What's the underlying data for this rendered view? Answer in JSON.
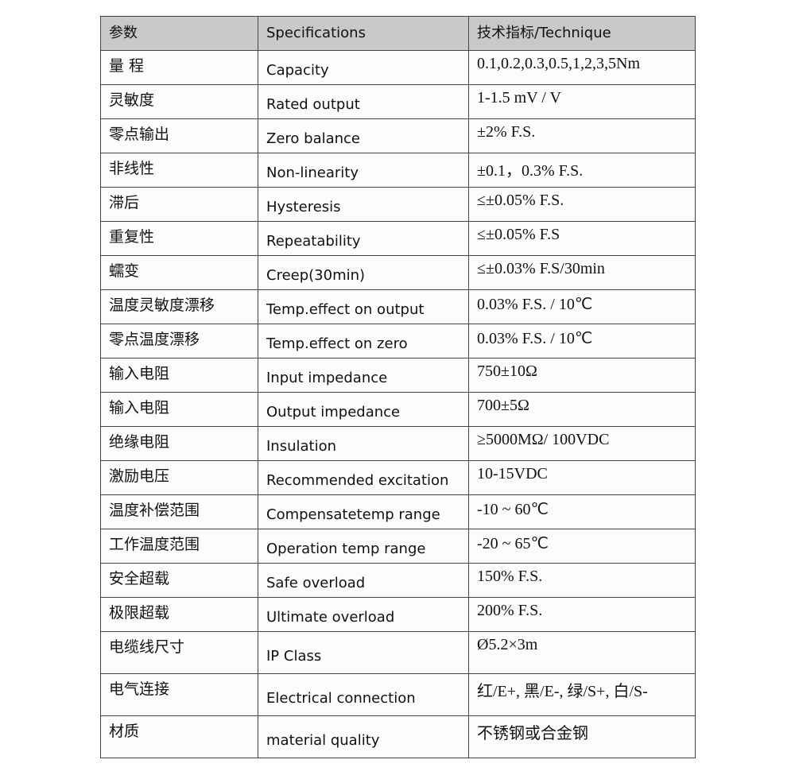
{
  "header": {
    "param": "参数",
    "spec": "Specifications",
    "tech": "技术指标/Technique"
  },
  "rows": [
    {
      "cn": "量 程",
      "en": "Capacity",
      "val": "0.1,0.2,0.3,0.5,1,2,3,5Nm"
    },
    {
      "cn": "灵敏度",
      "en": "Rated output",
      "val": "1-1.5 mV / V"
    },
    {
      "cn": "零点输出",
      "en": "Zero balance",
      "val": "±2% F.S."
    },
    {
      "cn": "非线性",
      "en": "Non-linearity",
      "val": "±0.1，0.3% F.S."
    },
    {
      "cn": "滞后",
      "en": "Hysteresis",
      "val": "≤±0.05% F.S."
    },
    {
      "cn": "重复性",
      "en": "Repeatability",
      "val": "≤±0.05% F.S"
    },
    {
      "cn": "蠕变",
      "en": "Creep(30min)",
      "val": "≤±0.03% F.S/30min"
    },
    {
      "cn": "温度灵敏度漂移",
      "en": "Temp.effect on output",
      "val": "0.03% F.S. / 10℃"
    },
    {
      "cn": "零点温度漂移",
      "en": "Temp.effect on zero",
      "val": "0.03% F.S. / 10℃"
    },
    {
      "cn": "输入电阻",
      "en": "Input impedance",
      "val": "750±10Ω"
    },
    {
      "cn": "输入电阻",
      "en": "Output impedance",
      "val": "700±5Ω"
    },
    {
      "cn": "绝缘电阻",
      "en": "Insulation",
      "val": "≥5000MΩ/ 100VDC"
    },
    {
      "cn": "激励电压",
      "en": "Recommended excitation",
      "val": "10-15VDC"
    },
    {
      "cn": "温度补偿范围",
      "en": "Compensatetemp range",
      "val": "-10 ~ 60℃"
    },
    {
      "cn": "工作温度范围",
      "en": "Operation temp range",
      "val": "-20 ~ 65℃"
    },
    {
      "cn": "安全超载",
      "en": "Safe overload",
      "val": "150% F.S."
    },
    {
      "cn": "极限超载",
      "en": "Ultimate overload",
      "val": "200% F.S."
    },
    {
      "cn": "电缆线尺寸",
      "en": "IP Class",
      "val": "Ø5.2×3m"
    },
    {
      "cn": "电气连接",
      "en": "Electrical connection",
      "val": "红/E+, 黑/E-, 绿/S+, 白/S-"
    },
    {
      "cn": "材质",
      "en": "material quality",
      "val": "不锈钢或合金钢"
    }
  ]
}
